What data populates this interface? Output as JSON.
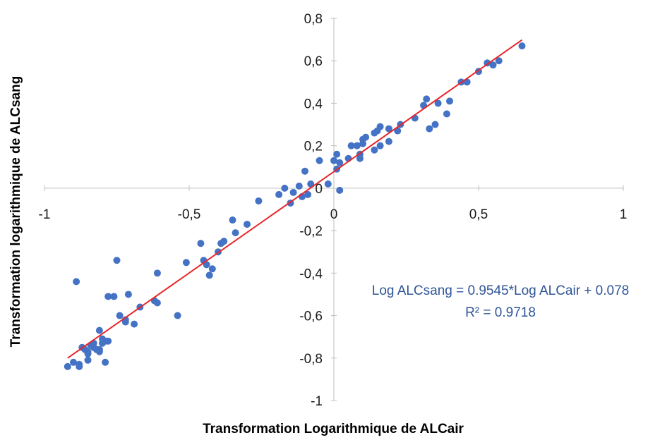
{
  "chart_data": {
    "type": "scatter",
    "title": "",
    "xlabel": "Transformation  Logarithmique de ALCair",
    "ylabel": "Transformation  logarithmique de ALCsang",
    "xlim": [
      -1,
      1
    ],
    "ylim": [
      -1,
      0.8
    ],
    "x_ticks": [
      -1,
      -0.5,
      0,
      0.5,
      1
    ],
    "x_tick_labels": [
      "-1",
      "-0,5",
      "0",
      "0,5",
      "1"
    ],
    "y_ticks": [
      0.8,
      0.6,
      0.4,
      0.2,
      0,
      -0.2,
      -0.4,
      -0.6,
      -0.8,
      -1
    ],
    "y_tick_labels": [
      "0,8",
      "0,6",
      "0,4",
      "0,2",
      "0",
      "-0,2",
      "-0,4",
      "-0,6",
      "-0,8",
      "-1"
    ],
    "grid": false,
    "point_color": "#4472c4",
    "trendline_color": "#e8262c",
    "annotation_color": "#2f5597",
    "trendline": {
      "slope": 0.9545,
      "intercept": 0.078,
      "x_range": [
        -0.92,
        0.65
      ],
      "equation": "Log ALCsang = 0.9545*Log ALCair + 0.078",
      "r_squared": "R² = 0.9718"
    },
    "points": [
      [
        -0.92,
        -0.84
      ],
      [
        -0.9,
        -0.82
      ],
      [
        -0.89,
        -0.44
      ],
      [
        -0.88,
        -0.84
      ],
      [
        -0.88,
        -0.83
      ],
      [
        -0.87,
        -0.75
      ],
      [
        -0.86,
        -0.76
      ],
      [
        -0.85,
        -0.81
      ],
      [
        -0.85,
        -0.78
      ],
      [
        -0.85,
        -0.77
      ],
      [
        -0.84,
        -0.74
      ],
      [
        -0.83,
        -0.73
      ],
      [
        -0.83,
        -0.75
      ],
      [
        -0.82,
        -0.76
      ],
      [
        -0.81,
        -0.77
      ],
      [
        -0.81,
        -0.76
      ],
      [
        -0.81,
        -0.67
      ],
      [
        -0.8,
        -0.71
      ],
      [
        -0.8,
        -0.73
      ],
      [
        -0.79,
        -0.72
      ],
      [
        -0.79,
        -0.82
      ],
      [
        -0.78,
        -0.72
      ],
      [
        -0.78,
        -0.51
      ],
      [
        -0.76,
        -0.51
      ],
      [
        -0.75,
        -0.34
      ],
      [
        -0.74,
        -0.6
      ],
      [
        -0.72,
        -0.62
      ],
      [
        -0.72,
        -0.63
      ],
      [
        -0.71,
        -0.5
      ],
      [
        -0.69,
        -0.64
      ],
      [
        -0.67,
        -0.56
      ],
      [
        -0.62,
        -0.53
      ],
      [
        -0.61,
        -0.54
      ],
      [
        -0.61,
        -0.4
      ],
      [
        -0.54,
        -0.6
      ],
      [
        -0.51,
        -0.35
      ],
      [
        -0.46,
        -0.26
      ],
      [
        -0.45,
        -0.34
      ],
      [
        -0.44,
        -0.36
      ],
      [
        -0.43,
        -0.41
      ],
      [
        -0.42,
        -0.38
      ],
      [
        -0.4,
        -0.3
      ],
      [
        -0.39,
        -0.26
      ],
      [
        -0.38,
        -0.25
      ],
      [
        -0.35,
        -0.15
      ],
      [
        -0.34,
        -0.21
      ],
      [
        -0.3,
        -0.17
      ],
      [
        -0.26,
        -0.06
      ],
      [
        -0.19,
        -0.03
      ],
      [
        -0.17,
        0.0
      ],
      [
        -0.15,
        -0.07
      ],
      [
        -0.14,
        -0.02
      ],
      [
        -0.12,
        0.01
      ],
      [
        -0.11,
        -0.04
      ],
      [
        -0.1,
        0.08
      ],
      [
        -0.09,
        -0.03
      ],
      [
        -0.08,
        0.02
      ],
      [
        -0.05,
        0.13
      ],
      [
        -0.02,
        0.02
      ],
      [
        0.0,
        0.13
      ],
      [
        0.01,
        0.16
      ],
      [
        0.01,
        0.09
      ],
      [
        0.02,
        0.12
      ],
      [
        0.02,
        -0.01
      ],
      [
        0.05,
        0.14
      ],
      [
        0.06,
        0.2
      ],
      [
        0.08,
        0.2
      ],
      [
        0.09,
        0.14
      ],
      [
        0.09,
        0.16
      ],
      [
        0.1,
        0.21
      ],
      [
        0.1,
        0.23
      ],
      [
        0.11,
        0.24
      ],
      [
        0.14,
        0.18
      ],
      [
        0.14,
        0.26
      ],
      [
        0.15,
        0.27
      ],
      [
        0.16,
        0.29
      ],
      [
        0.16,
        0.2
      ],
      [
        0.19,
        0.28
      ],
      [
        0.19,
        0.22
      ],
      [
        0.22,
        0.27
      ],
      [
        0.23,
        0.3
      ],
      [
        0.28,
        0.33
      ],
      [
        0.31,
        0.39
      ],
      [
        0.32,
        0.42
      ],
      [
        0.33,
        0.28
      ],
      [
        0.35,
        0.3
      ],
      [
        0.36,
        0.4
      ],
      [
        0.39,
        0.35
      ],
      [
        0.4,
        0.41
      ],
      [
        0.44,
        0.5
      ],
      [
        0.46,
        0.5
      ],
      [
        0.5,
        0.55
      ],
      [
        0.53,
        0.59
      ],
      [
        0.55,
        0.58
      ],
      [
        0.57,
        0.6
      ],
      [
        0.65,
        0.67
      ]
    ]
  }
}
